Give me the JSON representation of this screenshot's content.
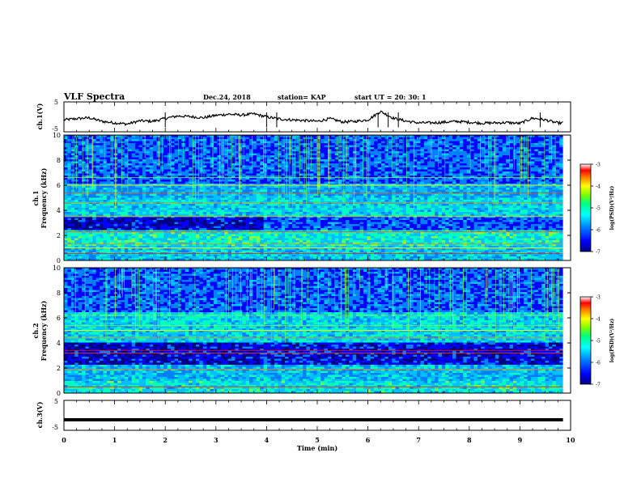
{
  "header": {
    "title": "VLF Spectra",
    "date": "Dec.24, 2018",
    "station": "station= KAP",
    "start": "start  UT  =   20: 30: 1"
  },
  "chart_data": [
    {
      "type": "line",
      "panel": "ch1-waveform",
      "ylabel": "ch.1(V)",
      "ylim": [
        -5,
        5
      ],
      "yticks": [
        "5",
        "-5"
      ],
      "x": [
        0,
        0.25,
        0.5,
        0.75,
        1.0,
        1.25,
        1.5,
        1.75,
        2.0,
        2.25,
        2.5,
        2.75,
        3.0,
        3.25,
        3.5,
        3.75,
        4.0,
        4.25,
        4.5,
        4.75,
        5.0,
        5.25,
        5.5,
        5.75,
        6.0,
        6.25,
        6.5,
        6.75,
        7.0,
        7.25,
        7.5,
        7.75,
        8.0,
        8.25,
        8.5,
        8.75,
        9.0,
        9.25,
        9.5,
        9.75,
        9.85
      ],
      "y": [
        -1.0,
        -0.6,
        -0.3,
        -1.5,
        -2.0,
        -2.4,
        -1.3,
        -1.5,
        -0.5,
        0.3,
        0.1,
        -0.3,
        0.5,
        0.9,
        0.6,
        1.0,
        0.0,
        -0.7,
        -1.0,
        -1.2,
        -1.5,
        -0.6,
        -1.7,
        -1.5,
        -1.0,
        1.8,
        -0.4,
        -1.4,
        -2.0,
        -2.0,
        -1.8,
        -1.5,
        -1.8,
        -2.1,
        -2.0,
        -1.9,
        -2.2,
        -0.4,
        -1.0,
        -2.1,
        -2.0
      ]
    },
    {
      "type": "heatmap",
      "panel": "ch1-spectrogram",
      "ylabel": "Frequency  (kHz)",
      "channel_label": "ch.1",
      "ylim": [
        0,
        10
      ],
      "yticks": [
        "0",
        "2",
        "4",
        "6",
        "8",
        "10"
      ],
      "colorbar": {
        "label": "log(PSD)(V²/Hz)",
        "range": [
          -7,
          -3
        ],
        "ticks": [
          "-3",
          "-4",
          "-5",
          "-6",
          "-7"
        ]
      }
    },
    {
      "type": "heatmap",
      "panel": "ch2-spectrogram",
      "ylabel": "Frequency  (kHz)",
      "channel_label": "ch.2",
      "ylim": [
        0,
        10
      ],
      "yticks": [
        "0",
        "2",
        "4",
        "6",
        "8",
        "10"
      ],
      "colorbar": {
        "label": "log(PSD)(V²/Hz)",
        "range": [
          -7,
          -3
        ],
        "ticks": [
          "-3",
          "-4",
          "-5",
          "-6",
          "-7"
        ]
      }
    },
    {
      "type": "line",
      "panel": "ch3-waveform",
      "ylabel": "ch.3(V)",
      "ylim": [
        -5,
        5
      ],
      "yticks": [
        "5",
        "-5"
      ],
      "x": [
        0,
        9.85
      ],
      "y": [
        -1.5,
        -1.5
      ],
      "xlabel": "Time  (min)",
      "xlim": [
        0,
        10
      ],
      "xticks": [
        "0",
        "1",
        "2",
        "3",
        "4",
        "5",
        "6",
        "7",
        "8",
        "9",
        "10"
      ]
    }
  ],
  "colors": {
    "line": "#000000",
    "colormap": [
      "#000080",
      "#0000ff",
      "#0080ff",
      "#00c0ff",
      "#00ffc0",
      "#80ff40",
      "#ffff00",
      "#ff8000",
      "#ff0000",
      "#ffffff"
    ]
  }
}
